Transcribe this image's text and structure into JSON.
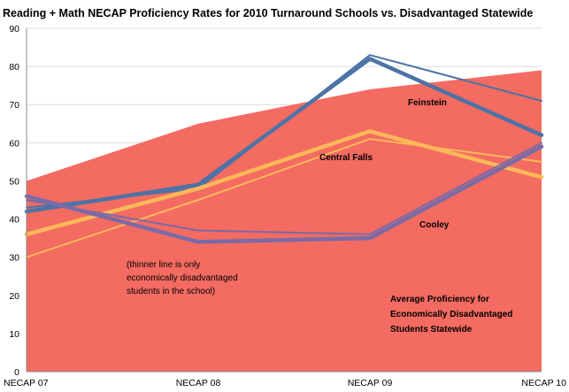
{
  "chart_data": {
    "type": "line",
    "title": "Reading + Math NECAP Proficiency Rates for 2010 Turnaround Schools vs. Disadvantaged Statewide",
    "xlabel": "",
    "ylabel": "",
    "ylim": [
      0,
      90
    ],
    "yticks": [
      0,
      10,
      20,
      30,
      40,
      50,
      60,
      70,
      80,
      90
    ],
    "categories": [
      "NECAP 07",
      "NECAP 08",
      "NECAP 09",
      "NECAP 10"
    ],
    "grid": true,
    "area": {
      "name": "Average Proficiency for Economically Disadvantaged Students Statewide",
      "values": [
        50,
        65,
        74,
        79
      ],
      "color": "#f36b61"
    },
    "series": [
      {
        "name": "Feinstein",
        "values": [
          42,
          49,
          82,
          62
        ],
        "color": "#4d73a6",
        "weight": "thick"
      },
      {
        "name": "Feinstein",
        "values": [
          43,
          48,
          83,
          71
        ],
        "color": "#4d73a6",
        "weight": "thin"
      },
      {
        "name": "Central Falls",
        "values": [
          36,
          48,
          63,
          51
        ],
        "color": "#fcb85a",
        "weight": "thick"
      },
      {
        "name": "Central Falls",
        "values": [
          30,
          45,
          61,
          55
        ],
        "color": "#fcb85a",
        "weight": "thin"
      },
      {
        "name": "Cooley",
        "values": [
          46,
          34,
          35,
          59
        ],
        "color": "#7b6aa6",
        "weight": "thick"
      },
      {
        "name": "Cooley",
        "values": [
          45,
          37,
          36,
          60
        ],
        "color": "#7b6aa6",
        "weight": "thin"
      }
    ],
    "annotations": {
      "feinstein": "Feinstein",
      "central_falls": "Central Falls",
      "cooley": "Cooley",
      "note": [
        "(thinner line is only",
        "economically disadvantaged",
        "students in the school)"
      ],
      "statewide": [
        "Average Proficiency for",
        "Economically Disadvantaged",
        "Students Statewide"
      ]
    }
  }
}
